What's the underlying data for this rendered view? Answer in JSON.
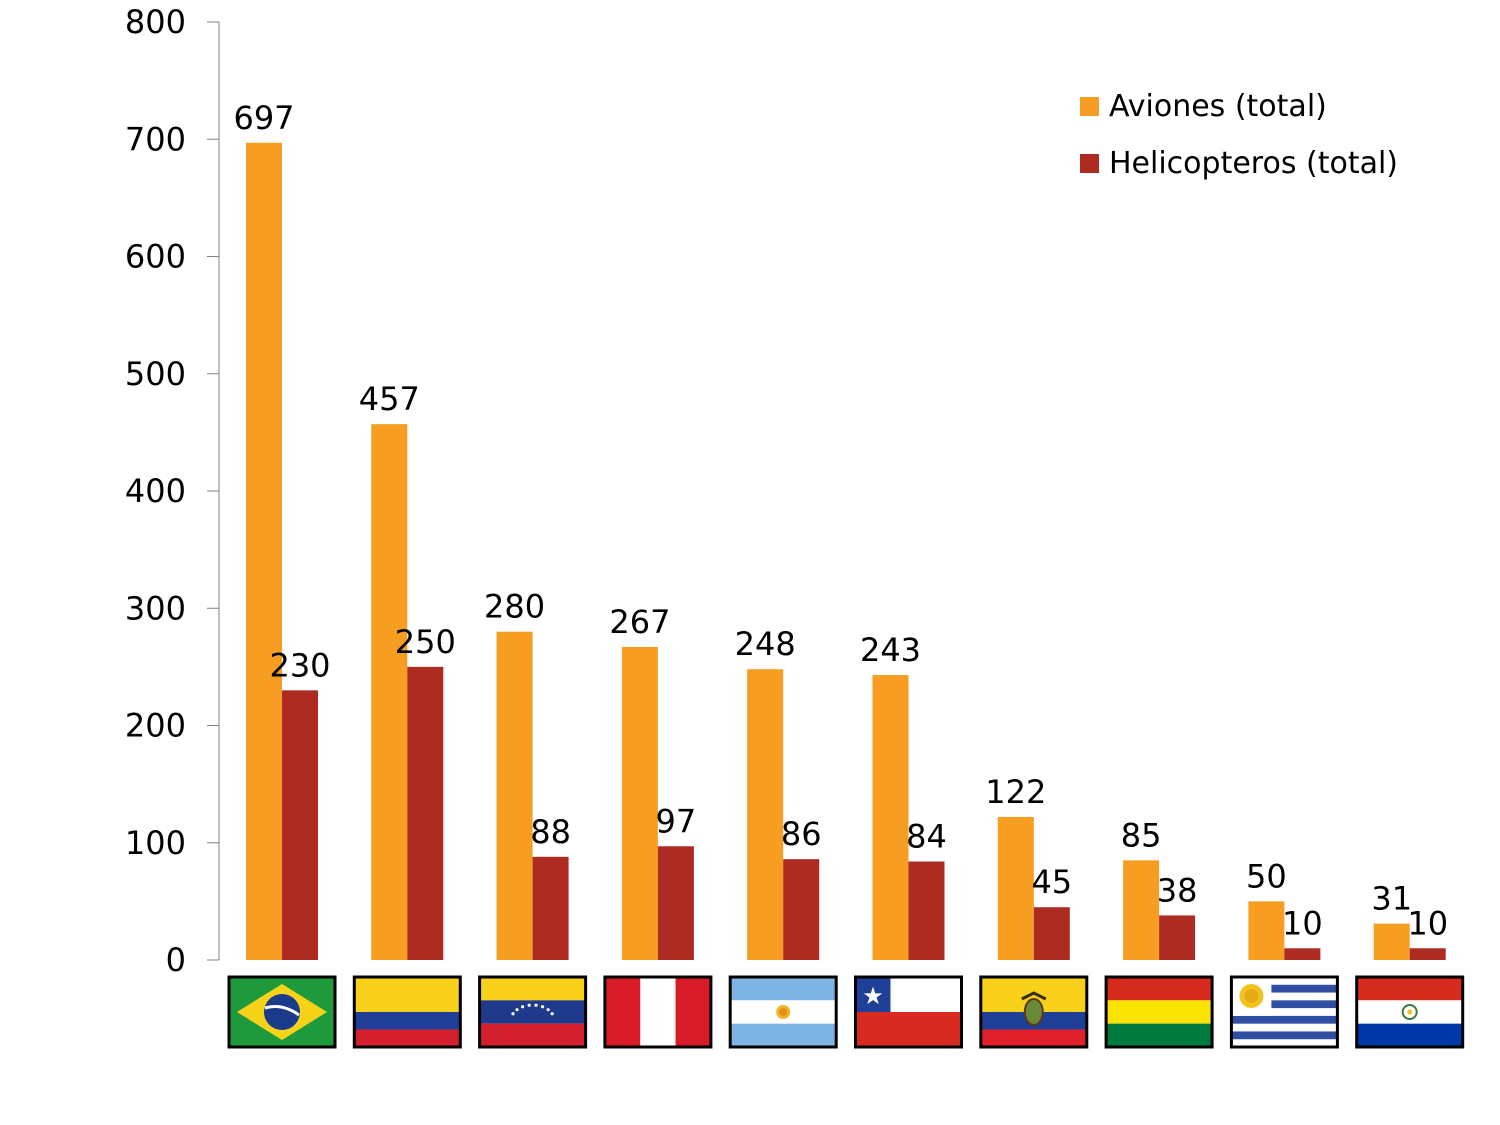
{
  "chart_data": {
    "type": "bar",
    "categories": [
      "Brasil",
      "Colombia",
      "Venezuela",
      "Perú",
      "Argentina",
      "Chile",
      "Ecuador",
      "Bolivia",
      "Uruguay",
      "Paraguay"
    ],
    "series": [
      {
        "name": "Aviones (total)",
        "color": "#f79d22",
        "values": [
          697,
          457,
          280,
          267,
          248,
          243,
          122,
          85,
          50,
          31
        ]
      },
      {
        "name": "Helicopteros (total)",
        "color": "#ae2b22",
        "values": [
          230,
          250,
          88,
          97,
          86,
          84,
          45,
          38,
          10,
          10
        ]
      }
    ],
    "ylim": [
      0,
      800
    ],
    "yticks": [
      0,
      100,
      200,
      300,
      400,
      500,
      600,
      700,
      800
    ],
    "grid": false,
    "legend_position": "top-right",
    "x_tick_labels": "flag icons"
  }
}
